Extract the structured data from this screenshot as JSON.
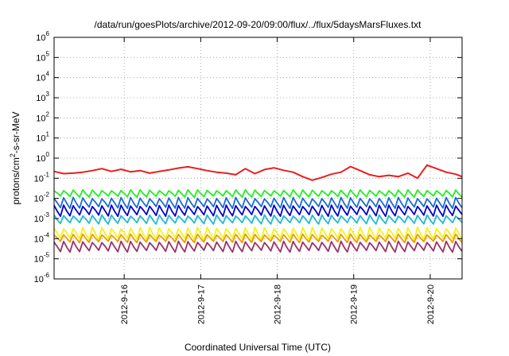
{
  "chart_data": {
    "type": "line",
    "title": "/data/run/goesPlots/archive/2012-09-20/09:00/flux/../flux/5daysMarsFluxes.txt",
    "xlabel": "Coordinated Universal Time (UTC)",
    "ylabel": {
      "pre": "protons/cm",
      "sup": "2",
      "post": "-s-sr-MeV"
    },
    "x_range": [
      "2012-09-15 02:00",
      "2012-09-20 10:00"
    ],
    "x_ticks": [
      "2012-9-16",
      "2012-9-17",
      "2012-9-18",
      "2012-9-19",
      "2012-9-20"
    ],
    "y_scale": "log",
    "ylim": [
      1e-06,
      1000000.0
    ],
    "y_ticks": [
      {
        "base": "10",
        "exp": "-6"
      },
      {
        "base": "10",
        "exp": "-5"
      },
      {
        "base": "10",
        "exp": "-4"
      },
      {
        "base": "10",
        "exp": "-3"
      },
      {
        "base": "10",
        "exp": "-2"
      },
      {
        "base": "10",
        "exp": "-1"
      },
      {
        "base": "10",
        "exp": "0"
      },
      {
        "base": "10",
        "exp": "1"
      },
      {
        "base": "10",
        "exp": "2"
      },
      {
        "base": "10",
        "exp": "3"
      },
      {
        "base": "10",
        "exp": "4"
      },
      {
        "base": "10",
        "exp": "5"
      },
      {
        "base": "10",
        "exp": "6"
      }
    ],
    "grid": true,
    "series": [
      {
        "color": "#ee1c1c",
        "x": [
          "2012-09-15 02:00",
          "2012-09-15 05:00",
          "2012-09-15 08:00",
          "2012-09-15 11:00",
          "2012-09-15 14:00",
          "2012-09-15 17:00",
          "2012-09-15 20:00",
          "2012-09-15 23:00",
          "2012-09-16 02:00",
          "2012-09-16 05:00",
          "2012-09-16 08:00",
          "2012-09-16 11:00",
          "2012-09-16 14:00",
          "2012-09-16 17:00",
          "2012-09-16 20:00",
          "2012-09-16 23:00",
          "2012-09-17 02:00",
          "2012-09-17 05:00",
          "2012-09-17 08:00",
          "2012-09-17 11:00",
          "2012-09-17 14:00",
          "2012-09-17 17:00",
          "2012-09-17 20:00",
          "2012-09-17 23:00",
          "2012-09-18 02:00",
          "2012-09-18 05:00",
          "2012-09-18 08:00",
          "2012-09-18 11:00",
          "2012-09-18 14:00",
          "2012-09-18 17:00",
          "2012-09-18 20:00",
          "2012-09-18 23:00",
          "2012-09-19 02:00",
          "2012-09-19 05:00",
          "2012-09-19 08:00",
          "2012-09-19 11:00",
          "2012-09-19 14:00",
          "2012-09-19 17:00",
          "2012-09-19 20:00",
          "2012-09-19 23:00",
          "2012-09-20 02:00",
          "2012-09-20 05:00",
          "2012-09-20 08:00",
          "2012-09-20 10:00"
        ],
        "y": [
          0.22,
          0.17,
          0.18,
          0.2,
          0.24,
          0.3,
          0.22,
          0.28,
          0.21,
          0.24,
          0.18,
          0.22,
          0.26,
          0.32,
          0.37,
          0.3,
          0.24,
          0.2,
          0.18,
          0.15,
          0.3,
          0.17,
          0.27,
          0.33,
          0.25,
          0.2,
          0.12,
          0.08,
          0.11,
          0.16,
          0.2,
          0.38,
          0.24,
          0.15,
          0.12,
          0.14,
          0.12,
          0.18,
          0.1,
          0.45,
          0.3,
          0.2,
          0.16,
          0.12
        ]
      },
      {
        "color": "#22ee22",
        "y_range": [
          0.011,
          0.028
        ]
      },
      {
        "color": "#1a6ad6",
        "y_range": [
          0.003,
          0.012
        ]
      },
      {
        "color": "#0000cc",
        "y_range": [
          0.0012,
          0.005
        ]
      },
      {
        "color": "#22bbcc",
        "y_range": [
          0.0005,
          0.0016
        ]
      },
      {
        "color": "#f2f21a",
        "y_range": [
          8e-05,
          0.0004
        ]
      },
      {
        "color": "#ee9900",
        "y_range": [
          6e-05,
          0.00018
        ]
      },
      {
        "color": "#993366",
        "y_range": [
          2e-05,
          8e-05
        ]
      }
    ]
  }
}
